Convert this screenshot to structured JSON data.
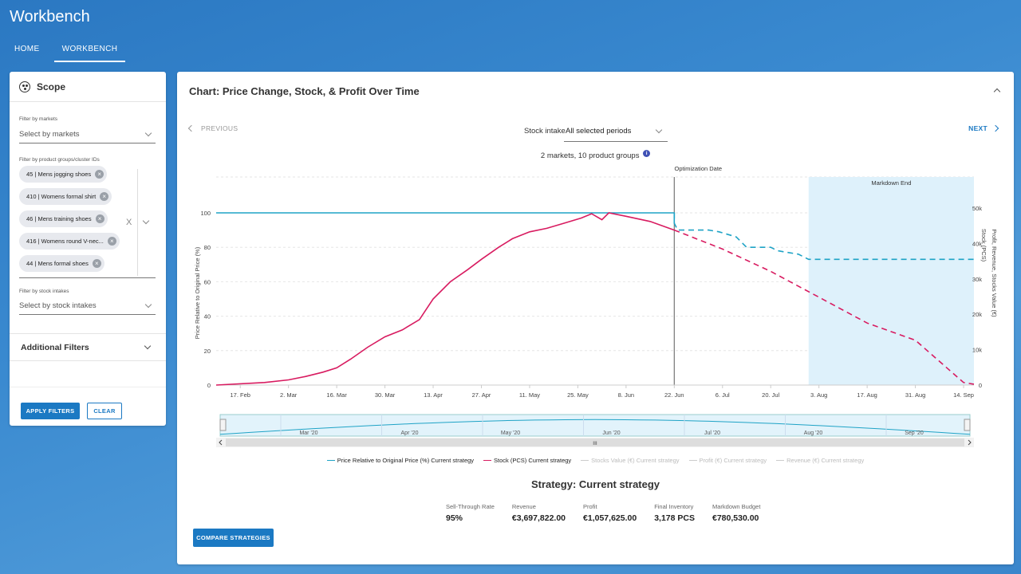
{
  "app": {
    "title": "Workbench"
  },
  "nav": {
    "items": [
      {
        "label": "HOME"
      },
      {
        "label": "WORKBENCH"
      }
    ]
  },
  "scope": {
    "title": "Scope",
    "markets": {
      "label": "Filter by markets",
      "placeholder": "Select by markets"
    },
    "groups": {
      "label": "Filter by product groups/cluster IDs",
      "chips": [
        "45 | Mens jogging shoes",
        "410 | Womens formal shirt",
        "46 | Mens training shoes",
        "416 | Womens round V-nec...",
        "44 | Mens formal shoes"
      ],
      "clear_symbol": "X"
    },
    "stock": {
      "label": "Filter by stock intakes",
      "placeholder": "Select by stock intakes"
    },
    "additional_filters": "Additional Filters",
    "apply_label": "APPLY FILTERS",
    "clear_label": "CLEAR"
  },
  "main": {
    "title": "Chart: Price Change, Stock, & Profit Over Time",
    "previous_label": "PREVIOUS",
    "next_label": "NEXT",
    "stock_intake_label": "Stock intake",
    "stock_intake_value": "All selected periods",
    "summary": "2 markets, 10 product groups",
    "info_symbol": "i",
    "strategy_title": "Strategy: Current strategy",
    "compare_label": "COMPARE STRATEGIES",
    "kpis": [
      {
        "label": "Sell-Through Rate",
        "value": "95%"
      },
      {
        "label": "Revenue",
        "value": "€3,697,822.00"
      },
      {
        "label": "Profit",
        "value": "€1,057,625.00"
      },
      {
        "label": "Final Inventory",
        "value": "3,178 PCS"
      },
      {
        "label": "Markdown Budget",
        "value": "€780,530.00"
      }
    ],
    "legend": [
      {
        "label": "Price Relative to Original Price (%) Current strategy",
        "color": "#1fa3c6",
        "active": true
      },
      {
        "label": "Stock (PCS) Current strategy",
        "color": "#d81b60",
        "active": true
      },
      {
        "label": "Stocks Value (€) Current strategy",
        "color": "#cccccc",
        "active": false
      },
      {
        "label": "Profit (€) Current strategy",
        "color": "#cccccc",
        "active": false
      },
      {
        "label": "Revenue (€) Current strategy",
        "color": "#cccccc",
        "active": false
      }
    ]
  },
  "chart_data": {
    "type": "line",
    "ylabel": "Price Relative to Original Price (%)",
    "y2label": "Profit, Revenue, Stocks Value (€)",
    "y3label": "Stock (PCS)",
    "ylim": [
      0,
      100
    ],
    "y2lim": [
      0,
      50000
    ],
    "yticks": [
      "0",
      "20",
      "40",
      "60",
      "80",
      "100"
    ],
    "y2ticks": [
      "0",
      "10k",
      "20k",
      "30k",
      "40k",
      "50k"
    ],
    "xlim": [
      "2020-02-10",
      "2020-09-17"
    ],
    "xticks": [
      "17. Feb",
      "2. Mar",
      "16. Mar",
      "30. Mar",
      "13. Apr",
      "27. Apr",
      "11. May",
      "25. May",
      "8. Jun",
      "22. Jun",
      "6. Jul",
      "20. Jul",
      "3. Aug",
      "17. Aug",
      "31. Aug",
      "14. Sep"
    ],
    "optimization_date": {
      "x": "2020-06-22",
      "label": "Optimization Date"
    },
    "markdown_region": {
      "start": "2020-07-31",
      "end": "2020-09-17",
      "label": "Markdown End"
    },
    "series": [
      {
        "name": "Price Relative to Original Price (%) Current strategy",
        "color": "#1fa3c6",
        "x": [
          "2020-02-10",
          "2020-06-22",
          "2020-06-22",
          "2020-06-23",
          "2020-07-02",
          "2020-07-05",
          "2020-07-10",
          "2020-07-13",
          "2020-07-20",
          "2020-07-22",
          "2020-07-25",
          "2020-07-28",
          "2020-07-31",
          "2020-09-17"
        ],
        "y": [
          100,
          100,
          94,
          90,
          90,
          89,
          86,
          80,
          80,
          78,
          77,
          76,
          73,
          73
        ],
        "dashed_from": "2020-06-22"
      },
      {
        "name": "Stock (PCS) Current strategy",
        "color": "#d81b60",
        "x": [
          "2020-02-10",
          "2020-02-24",
          "2020-03-02",
          "2020-03-07",
          "2020-03-12",
          "2020-03-16",
          "2020-03-20",
          "2020-03-25",
          "2020-03-30",
          "2020-04-04",
          "2020-04-09",
          "2020-04-13",
          "2020-04-18",
          "2020-04-23",
          "2020-04-27",
          "2020-05-02",
          "2020-05-06",
          "2020-05-11",
          "2020-05-16",
          "2020-05-21",
          "2020-05-26",
          "2020-05-29",
          "2020-06-01",
          "2020-06-03",
          "2020-06-08",
          "2020-06-15",
          "2020-06-22",
          "2020-07-06",
          "2020-07-20",
          "2020-08-03",
          "2020-08-17",
          "2020-08-31",
          "2020-09-14",
          "2020-09-17"
        ],
        "y": [
          0,
          1.5,
          3,
          5,
          7.5,
          10,
          15,
          22,
          28,
          32,
          38,
          50,
          60,
          67,
          73,
          80,
          85,
          89,
          91,
          94,
          97,
          99.5,
          96,
          100,
          98,
          95,
          90,
          79,
          66,
          51,
          36,
          26,
          1.5,
          0.5
        ],
        "dashed_from": "2020-06-22"
      }
    ]
  },
  "navigator": {
    "months": [
      "Mar '20",
      "Apr '20",
      "May '20",
      "Jun '20",
      "Jul '20",
      "Aug '20",
      "Sep '20"
    ],
    "scroll_grip": "III"
  }
}
